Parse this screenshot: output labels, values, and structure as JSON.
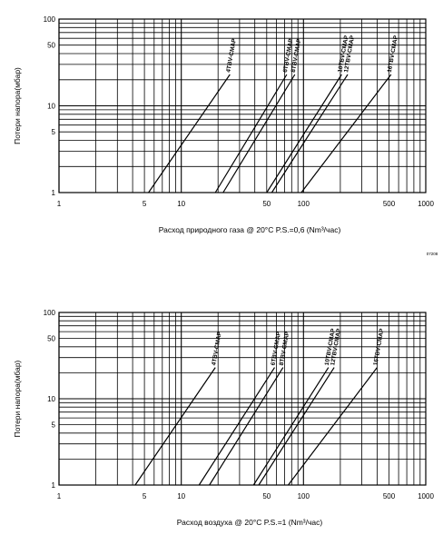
{
  "code_label": "07208",
  "chart_data": [
    {
      "type": "line",
      "scale": "log-log",
      "xlabel": "Расход  природного газа @ 20°C P.S.=0,6 (Nm³/час)",
      "ylabel": "Потери напора(мбар)",
      "xlim": [
        1,
        1000
      ],
      "ylim": [
        1,
        100
      ],
      "x_tick_labels": [
        "1",
        "5",
        "10",
        "50",
        "100",
        "500",
        "1000"
      ],
      "y_tick_labels": [
        "1",
        "5",
        "10",
        "50",
        "100"
      ],
      "grid": true,
      "series": [
        {
          "name": "4TBV-CMAP",
          "points": [
            [
              5.4,
              1
            ],
            [
              25,
              23
            ]
          ]
        },
        {
          "name": "6TBV-CMAP",
          "points": [
            [
              19,
              1
            ],
            [
              73,
              23
            ]
          ]
        },
        {
          "name": "8TBV-CMAP",
          "points": [
            [
              22,
              1
            ],
            [
              85,
              23
            ]
          ]
        },
        {
          "name": "10TBV-CMAP",
          "points": [
            [
              50,
              1
            ],
            [
              205,
              23
            ]
          ]
        },
        {
          "name": "12TBV-CMAP",
          "points": [
            [
              55,
              1
            ],
            [
              230,
              23
            ]
          ]
        },
        {
          "name": "16TBV-CMAP",
          "points": [
            [
              96,
              1
            ],
            [
              520,
              23
            ]
          ]
        }
      ]
    },
    {
      "type": "line",
      "scale": "log-log",
      "xlabel": "Расход воздуха @ 20°C P.S.=1 (Nm³/час)",
      "ylabel": "Потери напора(мбар)",
      "xlim": [
        1,
        1000
      ],
      "ylim": [
        1,
        100
      ],
      "x_tick_labels": [
        "1",
        "5",
        "10",
        "50",
        "100",
        "500",
        "1000"
      ],
      "y_tick_labels": [
        "1",
        "5",
        "10",
        "50",
        "100"
      ],
      "grid": true,
      "series": [
        {
          "name": "4TBV-CMAP",
          "points": [
            [
              4.2,
              1
            ],
            [
              19,
              23
            ]
          ]
        },
        {
          "name": "6TBV-CMAP",
          "points": [
            [
              14,
              1
            ],
            [
              58,
              23
            ]
          ]
        },
        {
          "name": "8TBV-CMAP",
          "points": [
            [
              17,
              1
            ],
            [
              68,
              23
            ]
          ]
        },
        {
          "name": "10TBV-CMAP",
          "points": [
            [
              39,
              1
            ],
            [
              160,
              23
            ]
          ]
        },
        {
          "name": "12TBV-CMAP",
          "points": [
            [
              43,
              1
            ],
            [
              178,
              23
            ]
          ]
        },
        {
          "name": "16TBV-CMAP",
          "points": [
            [
              75,
              1
            ],
            [
              400,
              23
            ]
          ]
        }
      ]
    }
  ]
}
